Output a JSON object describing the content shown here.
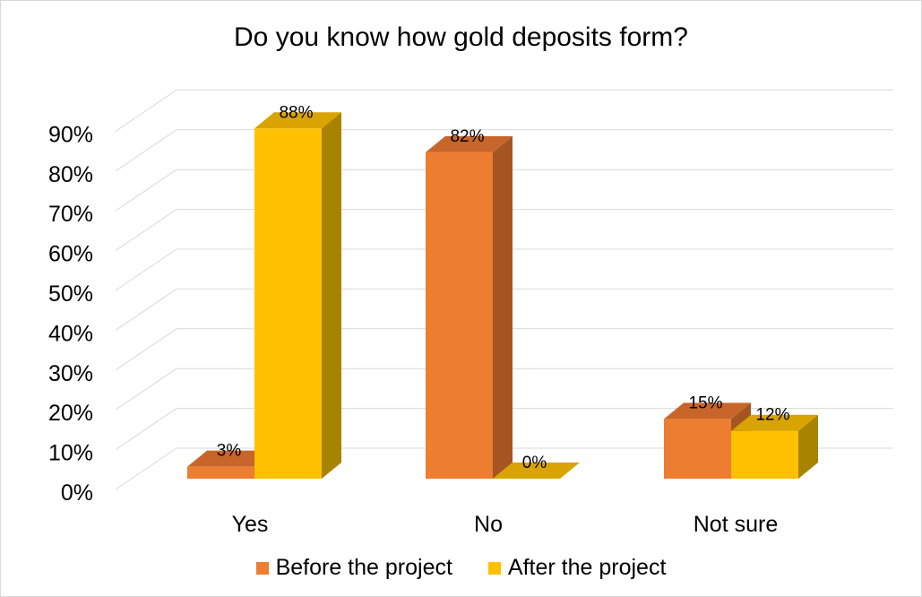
{
  "chart_data": {
    "type": "bar",
    "title": "Do you know how gold deposits form?",
    "categories": [
      "Yes",
      "No",
      "Not sure"
    ],
    "series": [
      {
        "name": "Before the project",
        "values": [
          3,
          82,
          15
        ],
        "labels": [
          "3%",
          "82%",
          "15%"
        ],
        "color": "#ED7D31",
        "side_color": "#A65421",
        "top_color": "#C8652A"
      },
      {
        "name": "After the project",
        "values": [
          88,
          0,
          12
        ],
        "labels": [
          "88%",
          "0%",
          "12%"
        ],
        "color": "#FFC000",
        "side_color": "#A88300",
        "top_color": "#D9A300"
      }
    ],
    "ylim": [
      0,
      90
    ],
    "yticks": [
      0,
      10,
      20,
      30,
      40,
      50,
      60,
      70,
      80,
      90
    ],
    "ytick_labels": [
      "0%",
      "10%",
      "20%",
      "30%",
      "40%",
      "50%",
      "60%",
      "70%",
      "80%",
      "90%"
    ],
    "grid": true,
    "legend_position": "bottom",
    "xlabel": "",
    "ylabel": ""
  }
}
